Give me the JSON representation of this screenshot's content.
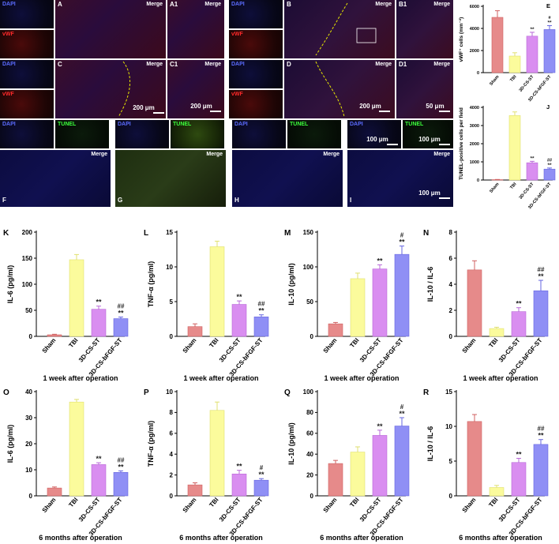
{
  "images": {
    "dapi": "DAPI",
    "vwf": "vWF",
    "tunel": "TUNEL",
    "merge": "Merge",
    "letters": {
      "A": "A",
      "A1": "A1",
      "B": "B",
      "B1": "B1",
      "C": "C",
      "C1": "C1",
      "D": "D",
      "D1": "D1",
      "F": "F",
      "G": "G",
      "H": "H",
      "I": "I"
    },
    "scales": {
      "s200a": "200 μm",
      "s200b": "200 μm",
      "s200c": "200 μm",
      "s50": "50 μm",
      "s100a": "100 μm",
      "s100b": "100 μm",
      "s100c": "100 μm"
    }
  },
  "colors": {
    "sham": "#e68a8a",
    "tbi": "#fbfb9c",
    "st": "#d98ef0",
    "bfgf": "#8f8ff5",
    "dapi": "#5b6cff",
    "vwf": "#ff2a2a",
    "tunel": "#3cff3c"
  },
  "chart_data": [
    {
      "id": "E",
      "type": "bar",
      "letter": "E",
      "categories": [
        "Sham",
        "TBI",
        "3D-CS-ST",
        "3D-CS-bFGF-ST"
      ],
      "values": [
        5000,
        1500,
        3300,
        3900
      ],
      "errors": [
        600,
        300,
        350,
        350
      ],
      "sig": [
        "",
        "",
        "**",
        "**"
      ],
      "sig2": [
        "",
        "",
        "",
        "#"
      ],
      "ylabel": "vWF⁺ cells (mm⁻²)",
      "ylim": [
        0,
        6000
      ],
      "yticks": [
        "0",
        "2000",
        "4000",
        "6000"
      ],
      "xlabel": ""
    },
    {
      "id": "J",
      "type": "bar",
      "letter": "J",
      "categories": [
        "Sham",
        "TBI",
        "3D-CS-ST",
        "3D-CS-bFGF-ST"
      ],
      "values": [
        20,
        3550,
        950,
        600
      ],
      "errors": [
        10,
        200,
        80,
        60
      ],
      "sig": [
        "",
        "",
        "**",
        "**"
      ],
      "sig2": [
        "",
        "",
        "",
        "##"
      ],
      "ylabel": "TUNEL-positive cells per field",
      "ylim": [
        0,
        4000
      ],
      "yticks": [
        "0",
        "1000",
        "2000",
        "3000",
        "4000"
      ],
      "xlabel": ""
    },
    {
      "id": "K",
      "type": "bar",
      "letter": "K",
      "categories": [
        "Sham",
        "TBI",
        "3D-CS-ST",
        "3D-CS-bFGF-ST"
      ],
      "values": [
        3,
        147,
        52,
        34
      ],
      "errors": [
        1,
        10,
        6,
        3
      ],
      "sig": [
        "",
        "",
        "**",
        "**"
      ],
      "sig2": [
        "",
        "",
        "",
        "##"
      ],
      "ylabel": "IL-6 (pg/ml)",
      "ylim": [
        0,
        200
      ],
      "yticks": [
        "0",
        "50",
        "100",
        "150",
        "200"
      ],
      "xlabel": "1 week after operation"
    },
    {
      "id": "L",
      "type": "bar",
      "letter": "L",
      "categories": [
        "Sham",
        "TBI",
        "3D-CS-ST",
        "3D-CS-bFGF-ST"
      ],
      "values": [
        1.4,
        12.9,
        4.6,
        2.8
      ],
      "errors": [
        0.4,
        0.8,
        0.5,
        0.3
      ],
      "sig": [
        "",
        "",
        "**",
        "**"
      ],
      "sig2": [
        "",
        "",
        "",
        "##"
      ],
      "ylabel": "TNF-α (pg/ml)",
      "ylim": [
        0,
        15
      ],
      "yticks": [
        "0",
        "5",
        "10",
        "15"
      ],
      "xlabel": "1 week after operation"
    },
    {
      "id": "M",
      "type": "bar",
      "letter": "M",
      "categories": [
        "Sham",
        "TBI",
        "3D-CS-ST",
        "3D-CS-bFGF-ST"
      ],
      "values": [
        18,
        83,
        97,
        118
      ],
      "errors": [
        2,
        8,
        6,
        12
      ],
      "sig": [
        "",
        "",
        "**",
        "**"
      ],
      "sig2": [
        "",
        "",
        "",
        "#"
      ],
      "ylabel": "IL-10 (pg/ml)",
      "ylim": [
        0,
        150
      ],
      "yticks": [
        "0",
        "50",
        "100",
        "150"
      ],
      "xlabel": "1 week after operation"
    },
    {
      "id": "N",
      "type": "bar",
      "letter": "N",
      "categories": [
        "Sham",
        "TBI",
        "3D-CS-ST",
        "3D-CS-bFGF-ST"
      ],
      "values": [
        5.1,
        0.6,
        1.9,
        3.5
      ],
      "errors": [
        0.7,
        0.1,
        0.3,
        0.8
      ],
      "sig": [
        "",
        "",
        "**",
        "**"
      ],
      "sig2": [
        "",
        "",
        "",
        "##"
      ],
      "ylabel": "IL-10 / IL-6",
      "ylim": [
        0,
        8
      ],
      "yticks": [
        "0",
        "2",
        "4",
        "6",
        "8"
      ],
      "xlabel": "1 week after operation"
    },
    {
      "id": "O",
      "type": "bar",
      "letter": "O",
      "categories": [
        "Sham",
        "TBI",
        "3D-CS-ST",
        "3D-CS-bFGF-ST"
      ],
      "values": [
        3,
        36,
        12,
        9
      ],
      "errors": [
        0.4,
        1,
        0.7,
        0.6
      ],
      "sig": [
        "",
        "",
        "**",
        "**"
      ],
      "sig2": [
        "",
        "",
        "",
        "##"
      ],
      "ylabel": "IL-6 (pg/ml)",
      "ylim": [
        0,
        40
      ],
      "yticks": [
        "0",
        "10",
        "20",
        "30",
        "40"
      ],
      "xlabel": "6 months after operation"
    },
    {
      "id": "P",
      "type": "bar",
      "letter": "P",
      "categories": [
        "Sham",
        "TBI",
        "3D-CS-ST",
        "3D-CS-bFGF-ST"
      ],
      "values": [
        1.05,
        8.2,
        2.1,
        1.5
      ],
      "errors": [
        0.2,
        0.8,
        0.35,
        0.15
      ],
      "sig": [
        "",
        "",
        "**",
        "**"
      ],
      "sig2": [
        "",
        "",
        "",
        "#"
      ],
      "ylabel": "TNF-α (pg/ml)",
      "ylim": [
        0,
        10
      ],
      "yticks": [
        "0",
        "2",
        "4",
        "6",
        "8",
        "10"
      ],
      "xlabel": "6 months after operation"
    },
    {
      "id": "Q",
      "type": "bar",
      "letter": "Q",
      "categories": [
        "Sham",
        "TBI",
        "3D-CS-ST",
        "3D-CS-bFGF-ST"
      ],
      "values": [
        31,
        42,
        58,
        67
      ],
      "errors": [
        3,
        5,
        5,
        8
      ],
      "sig": [
        "",
        "",
        "**",
        "**"
      ],
      "sig2": [
        "",
        "",
        "",
        "#"
      ],
      "ylabel": "IL-10 (pg/ml)",
      "ylim": [
        0,
        100
      ],
      "yticks": [
        "0",
        "20",
        "40",
        "60",
        "80",
        "100"
      ],
      "xlabel": "6 months after operation"
    },
    {
      "id": "R",
      "type": "bar",
      "letter": "R",
      "categories": [
        "Sham",
        "TBI",
        "3D-CS-ST",
        "3D-CS-bFGF-ST"
      ],
      "values": [
        10.7,
        1.2,
        4.8,
        7.4
      ],
      "errors": [
        1,
        0.3,
        0.6,
        0.7
      ],
      "sig": [
        "",
        "",
        "**",
        "**"
      ],
      "sig2": [
        "",
        "",
        "",
        "##"
      ],
      "ylabel": "IL-10 / IL-6",
      "ylim": [
        0,
        15
      ],
      "yticks": [
        "0",
        "5",
        "10",
        "15"
      ],
      "xlabel": "6 months after operation"
    }
  ]
}
